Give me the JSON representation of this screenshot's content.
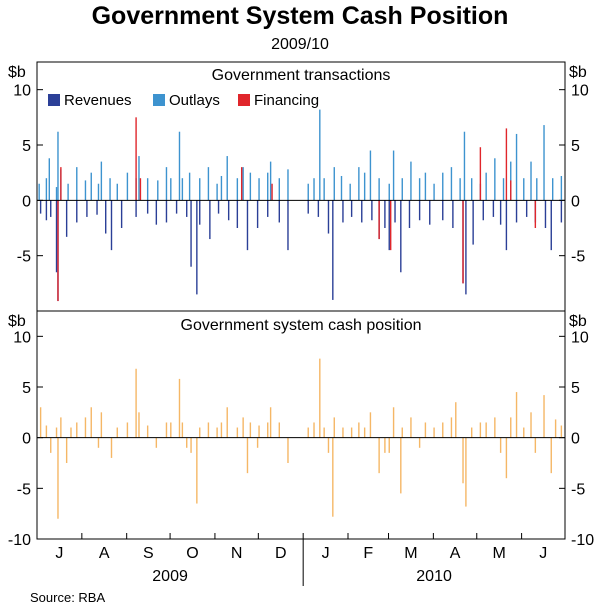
{
  "title": "Government System Cash Position",
  "subtitle": "2009/10",
  "source": "Source: RBA",
  "unit_label": "$b",
  "colors": {
    "revenues": "#2b3f97",
    "outlays": "#3d93cf",
    "financing": "#e0262b",
    "cash": "#f5b766",
    "axis": "#000000",
    "grid": "#888888"
  },
  "x_months": [
    "J",
    "A",
    "S",
    "O",
    "N",
    "D",
    "J",
    "F",
    "M",
    "A",
    "M",
    "J"
  ],
  "x_years": [
    "2009",
    "2010"
  ],
  "chart_data": [
    {
      "type": "bar",
      "title": "Government transactions",
      "ylim": [
        -10,
        12.5
      ],
      "yticks": [
        -5,
        0,
        5,
        10
      ],
      "yticklabels": [
        "-5",
        "0",
        "5",
        "10"
      ],
      "legend": [
        "Revenues",
        "Outlays",
        "Financing"
      ],
      "legend_position": "top-left",
      "x_range": [
        "2009-07-01",
        "2010-06-30"
      ],
      "series": [
        {
          "name": "Revenues",
          "points": [
            [
              "2009-07-03",
              -1.2
            ],
            [
              "2009-07-07",
              -1.8
            ],
            [
              "2009-07-10",
              -1.5
            ],
            [
              "2009-07-14",
              -6.5
            ],
            [
              "2009-07-15",
              -9.1
            ],
            [
              "2009-07-21",
              -3.3
            ],
            [
              "2009-07-28",
              -2.0
            ],
            [
              "2009-08-04",
              -1.5
            ],
            [
              "2009-08-11",
              -1.3
            ],
            [
              "2009-08-17",
              -3.0
            ],
            [
              "2009-08-21",
              -4.5
            ],
            [
              "2009-08-28",
              -2.5
            ],
            [
              "2009-09-07",
              -1.5
            ],
            [
              "2009-09-15",
              -1.2
            ],
            [
              "2009-09-21",
              -2.2
            ],
            [
              "2009-09-28",
              -2.0
            ],
            [
              "2009-10-05",
              -1.2
            ],
            [
              "2009-10-12",
              -1.5
            ],
            [
              "2009-10-15",
              -6.0
            ],
            [
              "2009-10-19",
              -8.5
            ],
            [
              "2009-10-21",
              -2.2
            ],
            [
              "2009-10-28",
              -3.5
            ],
            [
              "2009-11-03",
              -1.2
            ],
            [
              "2009-11-10",
              -1.8
            ],
            [
              "2009-11-16",
              -2.5
            ],
            [
              "2009-11-23",
              -4.5
            ],
            [
              "2009-11-30",
              -2.5
            ],
            [
              "2009-12-07",
              -1.5
            ],
            [
              "2009-12-15",
              -2.0
            ],
            [
              "2009-12-21",
              -4.5
            ],
            [
              "2010-01-04",
              -1.2
            ],
            [
              "2010-01-11",
              -1.5
            ],
            [
              "2010-01-18",
              -3.0
            ],
            [
              "2010-01-21",
              -9.0
            ],
            [
              "2010-01-28",
              -2.0
            ],
            [
              "2010-02-03",
              -1.5
            ],
            [
              "2010-02-10",
              -2.0
            ],
            [
              "2010-02-17",
              -1.8
            ],
            [
              "2010-02-22",
              -3.5
            ],
            [
              "2010-02-26",
              -2.5
            ],
            [
              "2010-03-01",
              -4.5
            ],
            [
              "2010-03-05",
              -2.0
            ],
            [
              "2010-03-09",
              -6.5
            ],
            [
              "2010-03-15",
              -2.5
            ],
            [
              "2010-03-22",
              -1.8
            ],
            [
              "2010-03-29",
              -2.2
            ],
            [
              "2010-04-07",
              -1.8
            ],
            [
              "2010-04-14",
              -2.5
            ],
            [
              "2010-04-21",
              -7.5
            ],
            [
              "2010-04-23",
              -8.5
            ],
            [
              "2010-04-28",
              -4.0
            ],
            [
              "2010-05-05",
              -1.8
            ],
            [
              "2010-05-12",
              -1.5
            ],
            [
              "2010-05-17",
              -2.2
            ],
            [
              "2010-05-21",
              -4.5
            ],
            [
              "2010-05-28",
              -2.0
            ],
            [
              "2010-06-04",
              -1.5
            ],
            [
              "2010-06-10",
              -2.0
            ],
            [
              "2010-06-17",
              -2.5
            ],
            [
              "2010-06-21",
              -4.5
            ],
            [
              "2010-06-28",
              -2.0
            ]
          ]
        },
        {
          "name": "Outlays",
          "points": [
            [
              "2009-07-02",
              1.5
            ],
            [
              "2009-07-07",
              2.0
            ],
            [
              "2009-07-09",
              3.8
            ],
            [
              "2009-07-14",
              1.2
            ],
            [
              "2009-07-15",
              6.2
            ],
            [
              "2009-07-17",
              2.8
            ],
            [
              "2009-07-22",
              1.5
            ],
            [
              "2009-07-28",
              3.0
            ],
            [
              "2009-08-03",
              1.8
            ],
            [
              "2009-08-07",
              2.5
            ],
            [
              "2009-08-12",
              1.5
            ],
            [
              "2009-08-14",
              3.5
            ],
            [
              "2009-08-20",
              2.0
            ],
            [
              "2009-08-25",
              1.5
            ],
            [
              "2009-09-01",
              2.5
            ],
            [
              "2009-09-07",
              2.0
            ],
            [
              "2009-09-09",
              4.0
            ],
            [
              "2009-09-15",
              2.0
            ],
            [
              "2009-09-22",
              1.8
            ],
            [
              "2009-09-28",
              3.0
            ],
            [
              "2009-10-01",
              2.0
            ],
            [
              "2009-10-07",
              6.2
            ],
            [
              "2009-10-09",
              2.0
            ],
            [
              "2009-10-14",
              2.5
            ],
            [
              "2009-10-21",
              2.0
            ],
            [
              "2009-10-27",
              3.0
            ],
            [
              "2009-11-02",
              1.5
            ],
            [
              "2009-11-05",
              2.2
            ],
            [
              "2009-11-09",
              4.0
            ],
            [
              "2009-11-16",
              2.0
            ],
            [
              "2009-11-20",
              3.0
            ],
            [
              "2009-11-25",
              2.5
            ],
            [
              "2009-12-01",
              2.0
            ],
            [
              "2009-12-07",
              2.5
            ],
            [
              "2009-12-09",
              3.5
            ],
            [
              "2009-12-15",
              2.0
            ],
            [
              "2009-12-21",
              2.8
            ],
            [
              "2010-01-04",
              1.5
            ],
            [
              "2010-01-08",
              2.0
            ],
            [
              "2010-01-12",
              8.2
            ],
            [
              "2010-01-15",
              2.0
            ],
            [
              "2010-01-22",
              3.0
            ],
            [
              "2010-01-27",
              2.2
            ],
            [
              "2010-02-02",
              1.5
            ],
            [
              "2010-02-08",
              3.0
            ],
            [
              "2010-02-12",
              2.5
            ],
            [
              "2010-02-16",
              4.5
            ],
            [
              "2010-02-22",
              2.0
            ],
            [
              "2010-03-01",
              1.5
            ],
            [
              "2010-03-04",
              4.5
            ],
            [
              "2010-03-10",
              2.0
            ],
            [
              "2010-03-16",
              3.5
            ],
            [
              "2010-03-22",
              2.0
            ],
            [
              "2010-03-26",
              2.5
            ],
            [
              "2010-04-01",
              1.5
            ],
            [
              "2010-04-07",
              2.5
            ],
            [
              "2010-04-13",
              3.0
            ],
            [
              "2010-04-19",
              2.0
            ],
            [
              "2010-04-22",
              6.2
            ],
            [
              "2010-04-27",
              2.0
            ],
            [
              "2010-05-03",
              1.5
            ],
            [
              "2010-05-07",
              2.5
            ],
            [
              "2010-05-13",
              3.8
            ],
            [
              "2010-05-19",
              2.0
            ],
            [
              "2010-05-24",
              3.5
            ],
            [
              "2010-05-28",
              6.0
            ],
            [
              "2010-06-02",
              2.0
            ],
            [
              "2010-06-07",
              3.5
            ],
            [
              "2010-06-11",
              2.0
            ],
            [
              "2010-06-16",
              6.8
            ],
            [
              "2010-06-22",
              2.0
            ],
            [
              "2010-06-28",
              2.2
            ]
          ]
        },
        {
          "name": "Financing",
          "points": [
            [
              "2009-07-15",
              -9.1
            ],
            [
              "2009-07-17",
              3.0
            ],
            [
              "2009-09-07",
              7.5
            ],
            [
              "2009-09-10",
              2.0
            ],
            [
              "2009-11-19",
              3.0
            ],
            [
              "2009-12-10",
              1.5
            ],
            [
              "2010-02-22",
              -3.5
            ],
            [
              "2010-03-02",
              -4.5
            ],
            [
              "2010-04-21",
              -7.5
            ],
            [
              "2010-05-03",
              4.8
            ],
            [
              "2010-05-21",
              6.5
            ],
            [
              "2010-05-24",
              1.8
            ],
            [
              "2010-06-10",
              -2.5
            ]
          ]
        }
      ]
    },
    {
      "type": "bar",
      "title": "Government system cash position",
      "ylim": [
        -10,
        12.5
      ],
      "yticks": [
        -10,
        -5,
        0,
        5,
        10
      ],
      "yticklabels": [
        "-10",
        "-5",
        "0",
        "5",
        "10"
      ],
      "x_range": [
        "2009-07-01",
        "2010-06-30"
      ],
      "series": [
        {
          "name": "Cash position",
          "points": [
            [
              "2009-07-03",
              3.0
            ],
            [
              "2009-07-07",
              1.2
            ],
            [
              "2009-07-10",
              -1.5
            ],
            [
              "2009-07-14",
              1.0
            ],
            [
              "2009-07-15",
              -8.0
            ],
            [
              "2009-07-17",
              2.0
            ],
            [
              "2009-07-21",
              -2.5
            ],
            [
              "2009-07-24",
              1.0
            ],
            [
              "2009-07-28",
              1.5
            ],
            [
              "2009-08-03",
              2.0
            ],
            [
              "2009-08-07",
              3.0
            ],
            [
              "2009-08-12",
              -1.0
            ],
            [
              "2009-08-14",
              2.5
            ],
            [
              "2009-08-21",
              -2.0
            ],
            [
              "2009-08-25",
              1.0
            ],
            [
              "2009-09-01",
              1.5
            ],
            [
              "2009-09-07",
              6.8
            ],
            [
              "2009-09-09",
              2.5
            ],
            [
              "2009-09-15",
              1.2
            ],
            [
              "2009-09-21",
              -1.0
            ],
            [
              "2009-09-28",
              1.5
            ],
            [
              "2009-10-01",
              1.5
            ],
            [
              "2009-10-07",
              5.8
            ],
            [
              "2009-10-09",
              1.5
            ],
            [
              "2009-10-12",
              -1.0
            ],
            [
              "2009-10-15",
              -1.5
            ],
            [
              "2009-10-19",
              -6.5
            ],
            [
              "2009-10-21",
              1.0
            ],
            [
              "2009-10-27",
              1.5
            ],
            [
              "2009-11-02",
              1.0
            ],
            [
              "2009-11-05",
              1.5
            ],
            [
              "2009-11-09",
              3.0
            ],
            [
              "2009-11-16",
              1.0
            ],
            [
              "2009-11-20",
              2.0
            ],
            [
              "2009-11-23",
              -3.5
            ],
            [
              "2009-11-25",
              1.5
            ],
            [
              "2009-11-30",
              -1.0
            ],
            [
              "2009-12-01",
              1.2
            ],
            [
              "2009-12-07",
              1.5
            ],
            [
              "2009-12-09",
              3.0
            ],
            [
              "2009-12-15",
              1.5
            ],
            [
              "2009-12-21",
              -2.5
            ],
            [
              "2010-01-04",
              1.0
            ],
            [
              "2010-01-08",
              1.5
            ],
            [
              "2010-01-12",
              7.8
            ],
            [
              "2010-01-15",
              1.0
            ],
            [
              "2010-01-18",
              -1.5
            ],
            [
              "2010-01-21",
              -7.8
            ],
            [
              "2010-01-22",
              2.0
            ],
            [
              "2010-01-28",
              1.0
            ],
            [
              "2010-02-03",
              1.0
            ],
            [
              "2010-02-08",
              1.5
            ],
            [
              "2010-02-12",
              1.0
            ],
            [
              "2010-02-16",
              2.5
            ],
            [
              "2010-02-22",
              -3.5
            ],
            [
              "2010-02-26",
              -1.5
            ],
            [
              "2010-03-01",
              -1.5
            ],
            [
              "2010-03-04",
              3.0
            ],
            [
              "2010-03-09",
              -5.5
            ],
            [
              "2010-03-10",
              1.0
            ],
            [
              "2010-03-16",
              2.0
            ],
            [
              "2010-03-22",
              -1.0
            ],
            [
              "2010-03-26",
              1.5
            ],
            [
              "2010-04-01",
              1.0
            ],
            [
              "2010-04-07",
              1.5
            ],
            [
              "2010-04-13",
              2.0
            ],
            [
              "2010-04-16",
              3.5
            ],
            [
              "2010-04-21",
              -4.5
            ],
            [
              "2010-04-23",
              -6.8
            ],
            [
              "2010-04-27",
              1.0
            ],
            [
              "2010-05-03",
              1.5
            ],
            [
              "2010-05-07",
              1.5
            ],
            [
              "2010-05-13",
              2.0
            ],
            [
              "2010-05-17",
              -1.5
            ],
            [
              "2010-05-21",
              -4.0
            ],
            [
              "2010-05-24",
              2.0
            ],
            [
              "2010-05-28",
              4.5
            ],
            [
              "2010-06-02",
              1.0
            ],
            [
              "2010-06-07",
              2.5
            ],
            [
              "2010-06-10",
              -1.5
            ],
            [
              "2010-06-16",
              4.2
            ],
            [
              "2010-06-21",
              -3.5
            ],
            [
              "2010-06-24",
              1.8
            ],
            [
              "2010-06-28",
              1.2
            ]
          ]
        }
      ]
    }
  ]
}
